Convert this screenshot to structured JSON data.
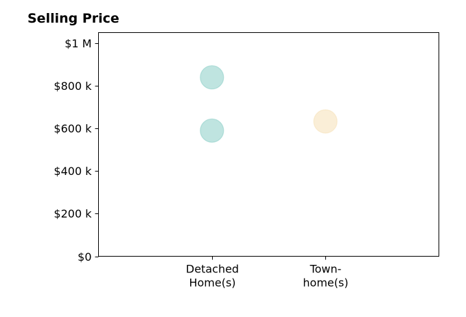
{
  "chart_data": {
    "type": "scatter",
    "title": "Selling Price",
    "xlabel": "",
    "ylabel": "",
    "categories": [
      [
        "Detached",
        "Home(s)"
      ],
      [
        "Town-",
        "home(s)"
      ]
    ],
    "y_ticks": [
      {
        "value": 0,
        "label": "$0"
      },
      {
        "value": 200000,
        "label": "$200 k"
      },
      {
        "value": 400000,
        "label": "$400 k"
      },
      {
        "value": 600000,
        "label": "$600 k"
      },
      {
        "value": 800000,
        "label": "$800 k"
      },
      {
        "value": 1000000,
        "label": "$1 M"
      }
    ],
    "ylim": [
      0,
      1050000
    ],
    "xlim": [
      0,
      3
    ],
    "grid": false,
    "points": [
      {
        "category": 0,
        "value": 840000,
        "color": "#7fc9c1"
      },
      {
        "category": 0,
        "value": 590000,
        "color": "#7fc9c1"
      },
      {
        "category": 1,
        "value": 633000,
        "color": "#f5deb0"
      }
    ],
    "marker_alpha": 0.5
  }
}
